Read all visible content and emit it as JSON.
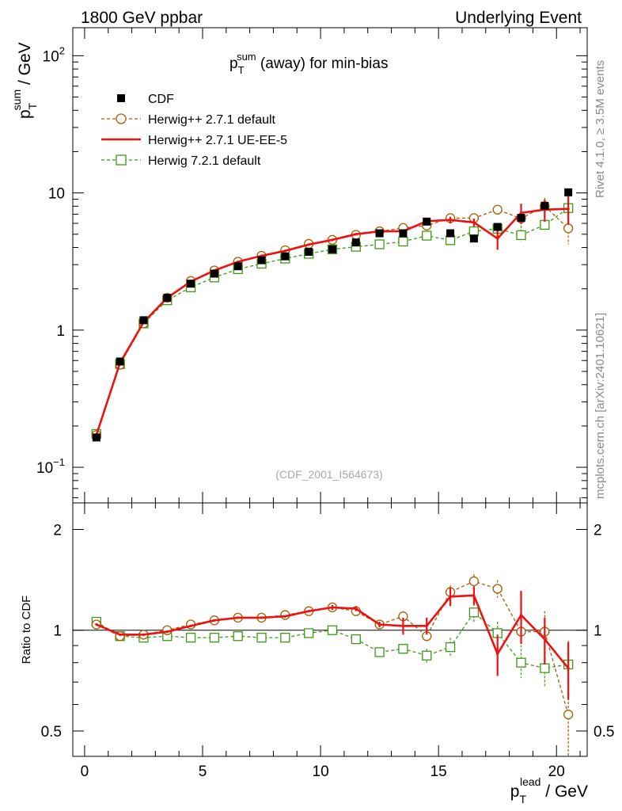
{
  "header": {
    "left": "1800 GeV ppbar",
    "right": "Underlying Event"
  },
  "side_labels": {
    "rivet": "Rivet 4.1.0, ≥ 3.5M events",
    "mcplots": "mcplots.cern.ch [arXiv:2401.10621]"
  },
  "colors": {
    "cdf": "#000000",
    "h271_default": "#a65c00",
    "h271_ue": "#ee1111",
    "h721": "#3c9a14"
  },
  "chart_data": [
    {
      "type": "line",
      "title": "p_T^sum (away) for min-bias",
      "title_main": "p",
      "title_sub": "T",
      "title_sup": "sum",
      "title_rest": " (away) for min-bias",
      "ylabel_main": "p",
      "ylabel_sub": "T",
      "ylabel_sup": "sum",
      "ylabel_rest": " / GeV",
      "yscale": "log",
      "ylim": [
        0.055,
        160
      ],
      "xlim": [
        -0.5,
        21.3
      ],
      "yticks": [
        {
          "value": 0.1,
          "base": "10",
          "exp": "−1"
        },
        {
          "value": 1,
          "base": "1",
          "exp": ""
        },
        {
          "value": 10,
          "base": "10",
          "exp": ""
        },
        {
          "value": 100,
          "base": "10",
          "exp": "2"
        }
      ],
      "watermark": "(CDF_2001_I564673)",
      "legend_position": "top-left",
      "x": [
        0.5,
        1.5,
        2.5,
        3.5,
        4.5,
        5.5,
        6.5,
        7.5,
        8.5,
        9.5,
        10.5,
        11.5,
        12.5,
        13.5,
        14.5,
        15.5,
        16.5,
        17.5,
        18.5,
        19.5,
        20.5
      ],
      "series": [
        {
          "name": "CDF",
          "key": "cdf",
          "values": [
            0.165,
            0.59,
            1.18,
            1.72,
            2.18,
            2.58,
            2.92,
            3.23,
            3.45,
            3.72,
            3.88,
            4.35,
            5.08,
            5.08,
            6.18,
            5.08,
            4.65,
            5.65,
            6.58,
            8.05,
            10.1
          ]
        },
        {
          "name": "Herwig++ 2.7.1 default",
          "key": "h271_default",
          "values": [
            0.172,
            0.56,
            1.12,
            1.72,
            2.28,
            2.72,
            3.15,
            3.48,
            3.82,
            4.25,
            4.55,
            4.95,
            5.25,
            5.55,
            5.78,
            6.55,
            6.55,
            7.55,
            6.52,
            8.02,
            5.52
          ],
          "errors": [
            0,
            0,
            0,
            0,
            0,
            0,
            0,
            0,
            0,
            0,
            0,
            0,
            0,
            0,
            0.3,
            0.4,
            0.45,
            0.5,
            1.0,
            1.2,
            1.3
          ]
        },
        {
          "name": "Herwig++ 2.7.1 UE-EE-5",
          "key": "h271_ue",
          "values": [
            0.172,
            0.575,
            1.14,
            1.72,
            2.26,
            2.72,
            3.15,
            3.48,
            3.78,
            4.2,
            4.55,
            5.0,
            5.25,
            5.25,
            6.22,
            6.35,
            6.1,
            4.65,
            7.15,
            7.55,
            7.65
          ],
          "errors": [
            0,
            0,
            0,
            0,
            0,
            0,
            0,
            0,
            0,
            0,
            0,
            0,
            0,
            0,
            0.3,
            0.35,
            0.4,
            0.8,
            1.2,
            1.4,
            1.8
          ]
        },
        {
          "name": "Herwig 7.2.1 default",
          "key": "h721",
          "values": [
            0.175,
            0.565,
            1.12,
            1.65,
            2.05,
            2.42,
            2.78,
            3.05,
            3.32,
            3.6,
            3.88,
            4.05,
            4.22,
            4.42,
            4.88,
            4.52,
            5.25,
            5.48,
            4.92,
            5.85,
            7.75
          ],
          "errors": [
            0,
            0,
            0,
            0,
            0,
            0,
            0,
            0,
            0,
            0,
            0,
            0,
            0,
            0.15,
            0.25,
            0.3,
            0.35,
            0.4,
            0.5,
            0.6,
            1.0
          ]
        }
      ]
    },
    {
      "type": "line",
      "title": "",
      "ylabel": "Ratio to CDF",
      "xlabel_main": "p",
      "xlabel_sub": "T",
      "xlabel_sup": "lead",
      "xlabel_rest": " / GeV",
      "yscale": "log",
      "ylim": [
        0.42,
        2.4
      ],
      "xlim": [
        -0.5,
        21.3
      ],
      "yticks": [
        0.5,
        1,
        2
      ],
      "xticks": [
        0,
        5,
        10,
        15,
        20
      ],
      "reference_line": 1,
      "x": [
        0.5,
        1.5,
        2.5,
        3.5,
        4.5,
        5.5,
        6.5,
        7.5,
        8.5,
        9.5,
        10.5,
        11.5,
        12.5,
        13.5,
        14.5,
        15.5,
        16.5,
        17.5,
        18.5,
        19.5,
        20.5
      ],
      "series": [
        {
          "name": "Herwig++ 2.7.1 default",
          "key": "h271_default",
          "values": [
            1.04,
            0.96,
            0.97,
            1.0,
            1.04,
            1.07,
            1.09,
            1.09,
            1.11,
            1.14,
            1.17,
            1.14,
            1.04,
            1.1,
            0.96,
            1.3,
            1.4,
            1.33,
            0.99,
            0.99,
            0.56
          ],
          "errors": [
            0,
            0,
            0,
            0,
            0,
            0,
            0,
            0,
            0,
            0,
            0.02,
            0.02,
            0.02,
            0.04,
            0.04,
            0.06,
            0.07,
            0.08,
            0.1,
            0.15,
            0.16
          ]
        },
        {
          "name": "Herwig++ 2.7.1 UE-EE-5",
          "key": "h271_ue",
          "values": [
            1.04,
            0.97,
            0.97,
            0.99,
            1.03,
            1.07,
            1.09,
            1.09,
            1.1,
            1.14,
            1.17,
            1.16,
            1.04,
            1.03,
            1.03,
            1.26,
            1.27,
            0.85,
            1.11,
            0.94,
            0.77
          ],
          "errors": [
            0,
            0,
            0,
            0,
            0,
            0,
            0,
            0,
            0,
            0,
            0.02,
            0.02,
            0.02,
            0.06,
            0.06,
            0.08,
            0.08,
            0.12,
            0.2,
            0.15,
            0.15
          ]
        },
        {
          "name": "Herwig 7.2.1 default",
          "key": "h721",
          "values": [
            1.06,
            0.96,
            0.95,
            0.96,
            0.95,
            0.95,
            0.96,
            0.95,
            0.95,
            0.98,
            1.0,
            0.94,
            0.86,
            0.88,
            0.84,
            0.89,
            1.13,
            0.98,
            0.8,
            0.77,
            0.79
          ],
          "errors": [
            0,
            0,
            0,
            0,
            0,
            0,
            0,
            0,
            0,
            0,
            0,
            0,
            0.02,
            0.03,
            0.04,
            0.06,
            0.07,
            0.08,
            0.08,
            0.09,
            0.14
          ]
        }
      ]
    }
  ]
}
